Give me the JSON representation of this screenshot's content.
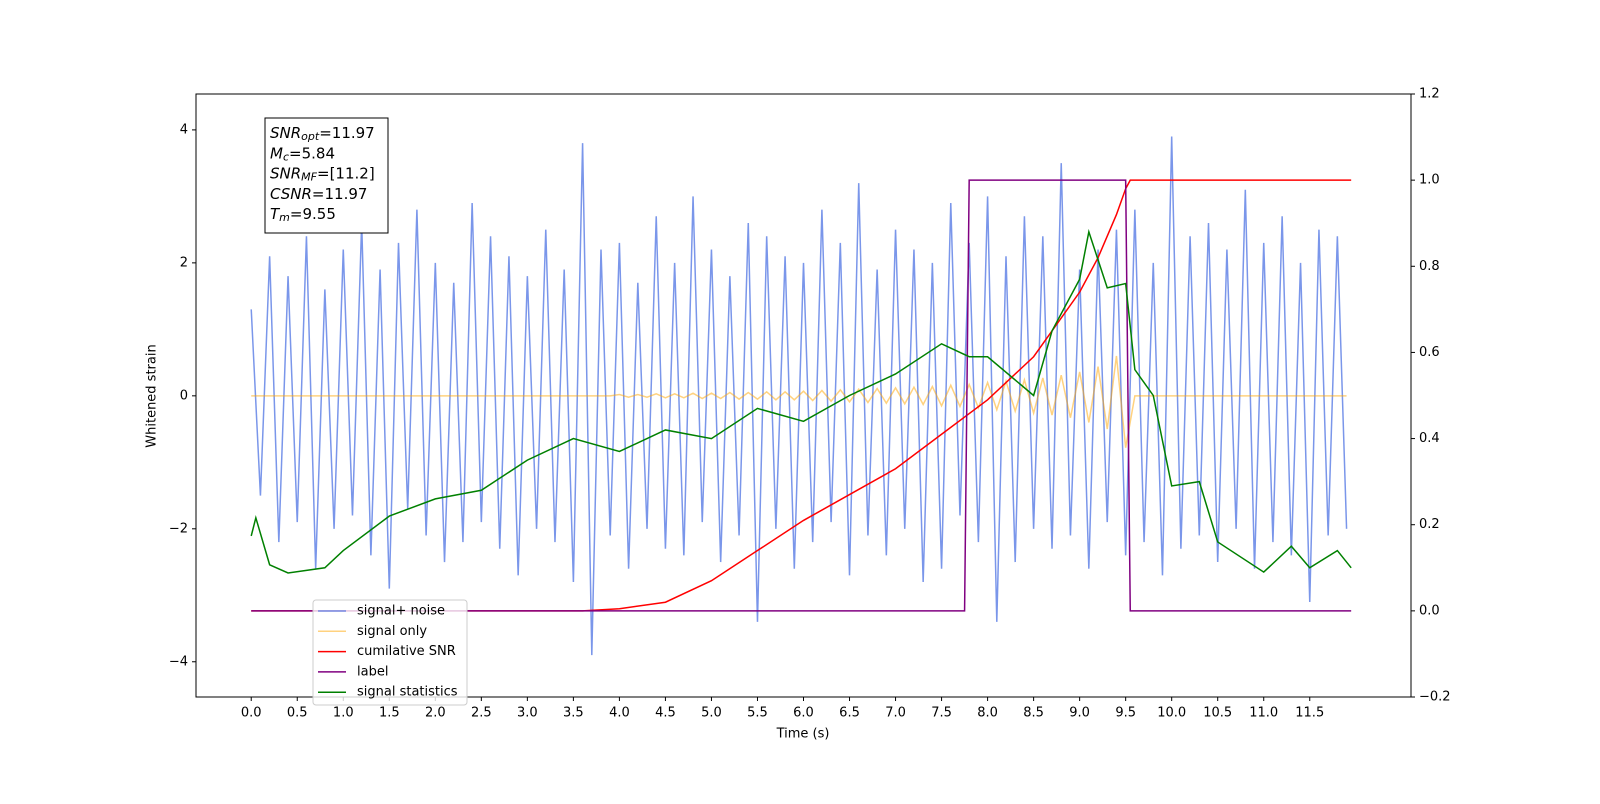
{
  "chart_data": {
    "type": "line",
    "xlabel": "Time (s)",
    "ylabel": "Whitened strain",
    "xlim": [
      -0.6,
      12.6
    ],
    "ylim": [
      -4.53,
      4.54
    ],
    "y2lim": [
      -0.2,
      1.2
    ],
    "xticks": [
      {
        "value": 0,
        "label": "0.0"
      },
      0.5,
      {
        "value": 1,
        "label": "1.0"
      },
      1.5,
      {
        "value": 2,
        "label": "2.0"
      },
      2.5,
      {
        "value": 3,
        "label": "3.0"
      },
      3.5,
      {
        "value": 4,
        "label": "4.0"
      },
      4.5,
      {
        "value": 5,
        "label": "5.0"
      },
      5.5,
      {
        "value": 6,
        "label": "6.0"
      },
      6.5,
      {
        "value": 7,
        "label": "7.0"
      },
      7.5,
      {
        "value": 8,
        "label": "8.0"
      },
      8.5,
      {
        "value": 9,
        "label": "9.0"
      },
      9.5,
      {
        "value": 10,
        "label": "10.0"
      },
      10.5,
      {
        "value": 11,
        "label": "11.0"
      },
      11.5
    ],
    "yticks": [
      {
        "value": -4,
        "label": "−4"
      },
      {
        "value": -2,
        "label": "−2"
      },
      0,
      2,
      4
    ],
    "y2ticks": [
      {
        "value": -0.2,
        "label": "−0.2"
      },
      {
        "value": 0,
        "label": "0.0"
      },
      0.2,
      0.4,
      0.6,
      0.8,
      {
        "value": 1,
        "label": "1.0"
      },
      1.2
    ],
    "legend": "lower left",
    "annotations": [
      {
        "main": "SNR",
        "sub": "opt",
        "rest": "=11.97"
      },
      {
        "main": "M",
        "sub": "c",
        "rest": "=5.84"
      },
      {
        "main": "SNR",
        "sub": "MF",
        "rest": "=[11.2]"
      },
      {
        "main": "CSNR",
        "sub": null,
        "rest": "=11.97"
      },
      {
        "main": "T",
        "sub": "m",
        "rest": "=9.55"
      }
    ],
    "x": [
      0,
      0.1,
      0.2,
      0.3,
      0.4,
      0.5,
      0.6,
      0.7,
      0.8,
      0.9,
      1,
      1.1,
      1.2,
      1.3,
      1.4,
      1.5,
      1.6,
      1.7,
      1.8,
      1.9,
      2,
      2.1,
      2.2,
      2.3,
      2.4,
      2.5,
      2.6,
      2.7,
      2.8,
      2.9,
      3,
      3.1,
      3.2,
      3.3,
      3.4,
      3.5,
      3.6,
      3.7,
      3.8,
      3.9,
      4,
      4.1,
      4.2,
      4.3,
      4.4,
      4.5,
      4.6,
      4.7,
      4.8,
      4.9,
      5,
      5.1,
      5.2,
      5.3,
      5.4,
      5.5,
      5.6,
      5.7,
      5.8,
      5.9,
      6,
      6.1,
      6.2,
      6.3,
      6.4,
      6.5,
      6.6,
      6.7,
      6.8,
      6.9,
      7,
      7.1,
      7.2,
      7.3,
      7.4,
      7.5,
      7.6,
      7.7,
      7.8,
      7.9,
      8,
      8.1,
      8.2,
      8.3,
      8.4,
      8.5,
      8.6,
      8.7,
      8.8,
      8.9,
      9,
      9.1,
      9.2,
      9.3,
      9.4,
      9.5,
      9.6,
      9.7,
      9.8,
      9.9,
      10,
      10.1,
      10.2,
      10.3,
      10.4,
      10.5,
      10.6,
      10.7,
      10.8,
      10.9,
      11,
      11.1,
      11.2,
      11.3,
      11.4,
      11.5,
      11.6,
      11.7,
      11.8,
      11.9
    ],
    "series": [
      {
        "name": "signal+ noise",
        "color": "#4169e1b3",
        "values": [
          1.3,
          -1.5,
          2.1,
          -2.2,
          1.8,
          -1.9,
          2.4,
          -2.6,
          1.6,
          -2.0,
          2.2,
          -1.8,
          2.6,
          -2.4,
          1.9,
          -2.9,
          2.3,
          -1.7,
          2.8,
          -2.1,
          2.0,
          -2.5,
          1.7,
          -2.2,
          2.9,
          -1.9,
          2.4,
          -2.3,
          2.1,
          -2.7,
          1.8,
          -2.0,
          2.5,
          -2.2,
          1.9,
          -2.8,
          3.8,
          -3.9,
          2.2,
          -2.1,
          2.3,
          -2.6,
          1.7,
          -2.0,
          2.7,
          -2.3,
          2.0,
          -2.4,
          3.0,
          -1.9,
          2.2,
          -2.5,
          1.8,
          -2.1,
          2.6,
          -3.4,
          2.4,
          -2.0,
          2.1,
          -2.6,
          2.0,
          -2.2,
          2.8,
          -1.9,
          2.3,
          -2.7,
          3.2,
          -2.1,
          1.9,
          -2.4,
          2.5,
          -2.0,
          2.2,
          -2.8,
          2.0,
          -2.6,
          2.9,
          -1.8,
          2.3,
          -2.2,
          3.0,
          -3.4,
          2.1,
          -2.5,
          2.7,
          -2.0,
          2.4,
          -2.3,
          3.5,
          -2.1,
          1.9,
          -2.6,
          2.2,
          -1.9,
          2.5,
          -2.4,
          2.8,
          -2.2,
          2.0,
          -2.7,
          3.9,
          -2.3,
          2.4,
          -2.1,
          2.6,
          -2.5,
          2.2,
          -2.0,
          3.1,
          -2.6,
          2.3,
          -2.2,
          2.7,
          -2.4,
          2.0,
          -3.1,
          2.5,
          -2.1,
          2.4,
          -2.0
        ]
      },
      {
        "name": "signal only",
        "color": "#ffa50080",
        "values": [
          0,
          0,
          0,
          0,
          0,
          0,
          0,
          0,
          0,
          0,
          0,
          0,
          0,
          0,
          0,
          0,
          0,
          0,
          0,
          0,
          0,
          0,
          0,
          0,
          0,
          0,
          0,
          0,
          0,
          0,
          0,
          0,
          0,
          0,
          0,
          0,
          0,
          0,
          0,
          0,
          0.02,
          -0.02,
          0.02,
          -0.02,
          0.03,
          -0.03,
          0.03,
          -0.03,
          0.04,
          -0.04,
          0.04,
          -0.04,
          0.05,
          -0.05,
          0.05,
          -0.05,
          0.06,
          -0.06,
          0.06,
          -0.06,
          0.07,
          -0.07,
          0.08,
          -0.08,
          0.09,
          -0.09,
          0.1,
          -0.1,
          0.11,
          -0.11,
          0.12,
          -0.12,
          0.13,
          -0.13,
          0.14,
          -0.15,
          0.16,
          -0.16,
          0.17,
          -0.18,
          0.2,
          -0.21,
          0.22,
          -0.23,
          0.24,
          -0.26,
          0.27,
          -0.29,
          0.31,
          -0.33,
          0.36,
          -0.4,
          0.44,
          -0.5,
          0.6,
          -0.78,
          0,
          0,
          0,
          0,
          0,
          0,
          0,
          0,
          0,
          0,
          0,
          0,
          0,
          0,
          0,
          0,
          0,
          0,
          0,
          0,
          0,
          0,
          0,
          0
        ]
      },
      {
        "name": "cumilative SNR",
        "color": "#ff0000",
        "axis": "y2",
        "x": [
          0,
          3.6,
          4,
          4.5,
          5,
          5.5,
          6,
          6.5,
          7,
          7.5,
          8,
          8.5,
          9,
          9.2,
          9.4,
          9.5,
          9.55,
          11.95
        ],
        "values": [
          0,
          0,
          0.005,
          0.02,
          0.07,
          0.14,
          0.21,
          0.27,
          0.33,
          0.41,
          0.49,
          0.59,
          0.74,
          0.82,
          0.92,
          0.98,
          1,
          1
        ]
      },
      {
        "name": "label",
        "color": "#800080",
        "axis": "y2",
        "x": [
          0,
          7.75,
          7.8,
          9.5,
          9.55,
          11.95
        ],
        "values": [
          0,
          0,
          1,
          1,
          0,
          0
        ]
      },
      {
        "name": "signal statistics",
        "color": "#008000",
        "axis": "y2",
        "x": [
          0,
          0.05,
          0.2,
          0.4,
          0.8,
          1,
          1.5,
          2,
          2.5,
          3,
          3.5,
          4,
          4.5,
          5,
          5.5,
          6,
          6.5,
          7,
          7.5,
          7.8,
          8,
          8.5,
          8.7,
          9,
          9.1,
          9.3,
          9.5,
          9.6,
          9.8,
          10,
          10.3,
          10.5,
          11,
          11.3,
          11.5,
          11.8,
          11.95
        ],
        "values": [
          0.174,
          0.216,
          0.107,
          0.088,
          0.1,
          0.14,
          0.22,
          0.26,
          0.28,
          0.35,
          0.4,
          0.37,
          0.42,
          0.4,
          0.47,
          0.44,
          0.5,
          0.55,
          0.62,
          0.59,
          0.59,
          0.5,
          0.65,
          0.77,
          0.88,
          0.75,
          0.76,
          0.56,
          0.5,
          0.29,
          0.3,
          0.16,
          0.09,
          0.15,
          0.1,
          0.14,
          0.1
        ]
      }
    ]
  }
}
